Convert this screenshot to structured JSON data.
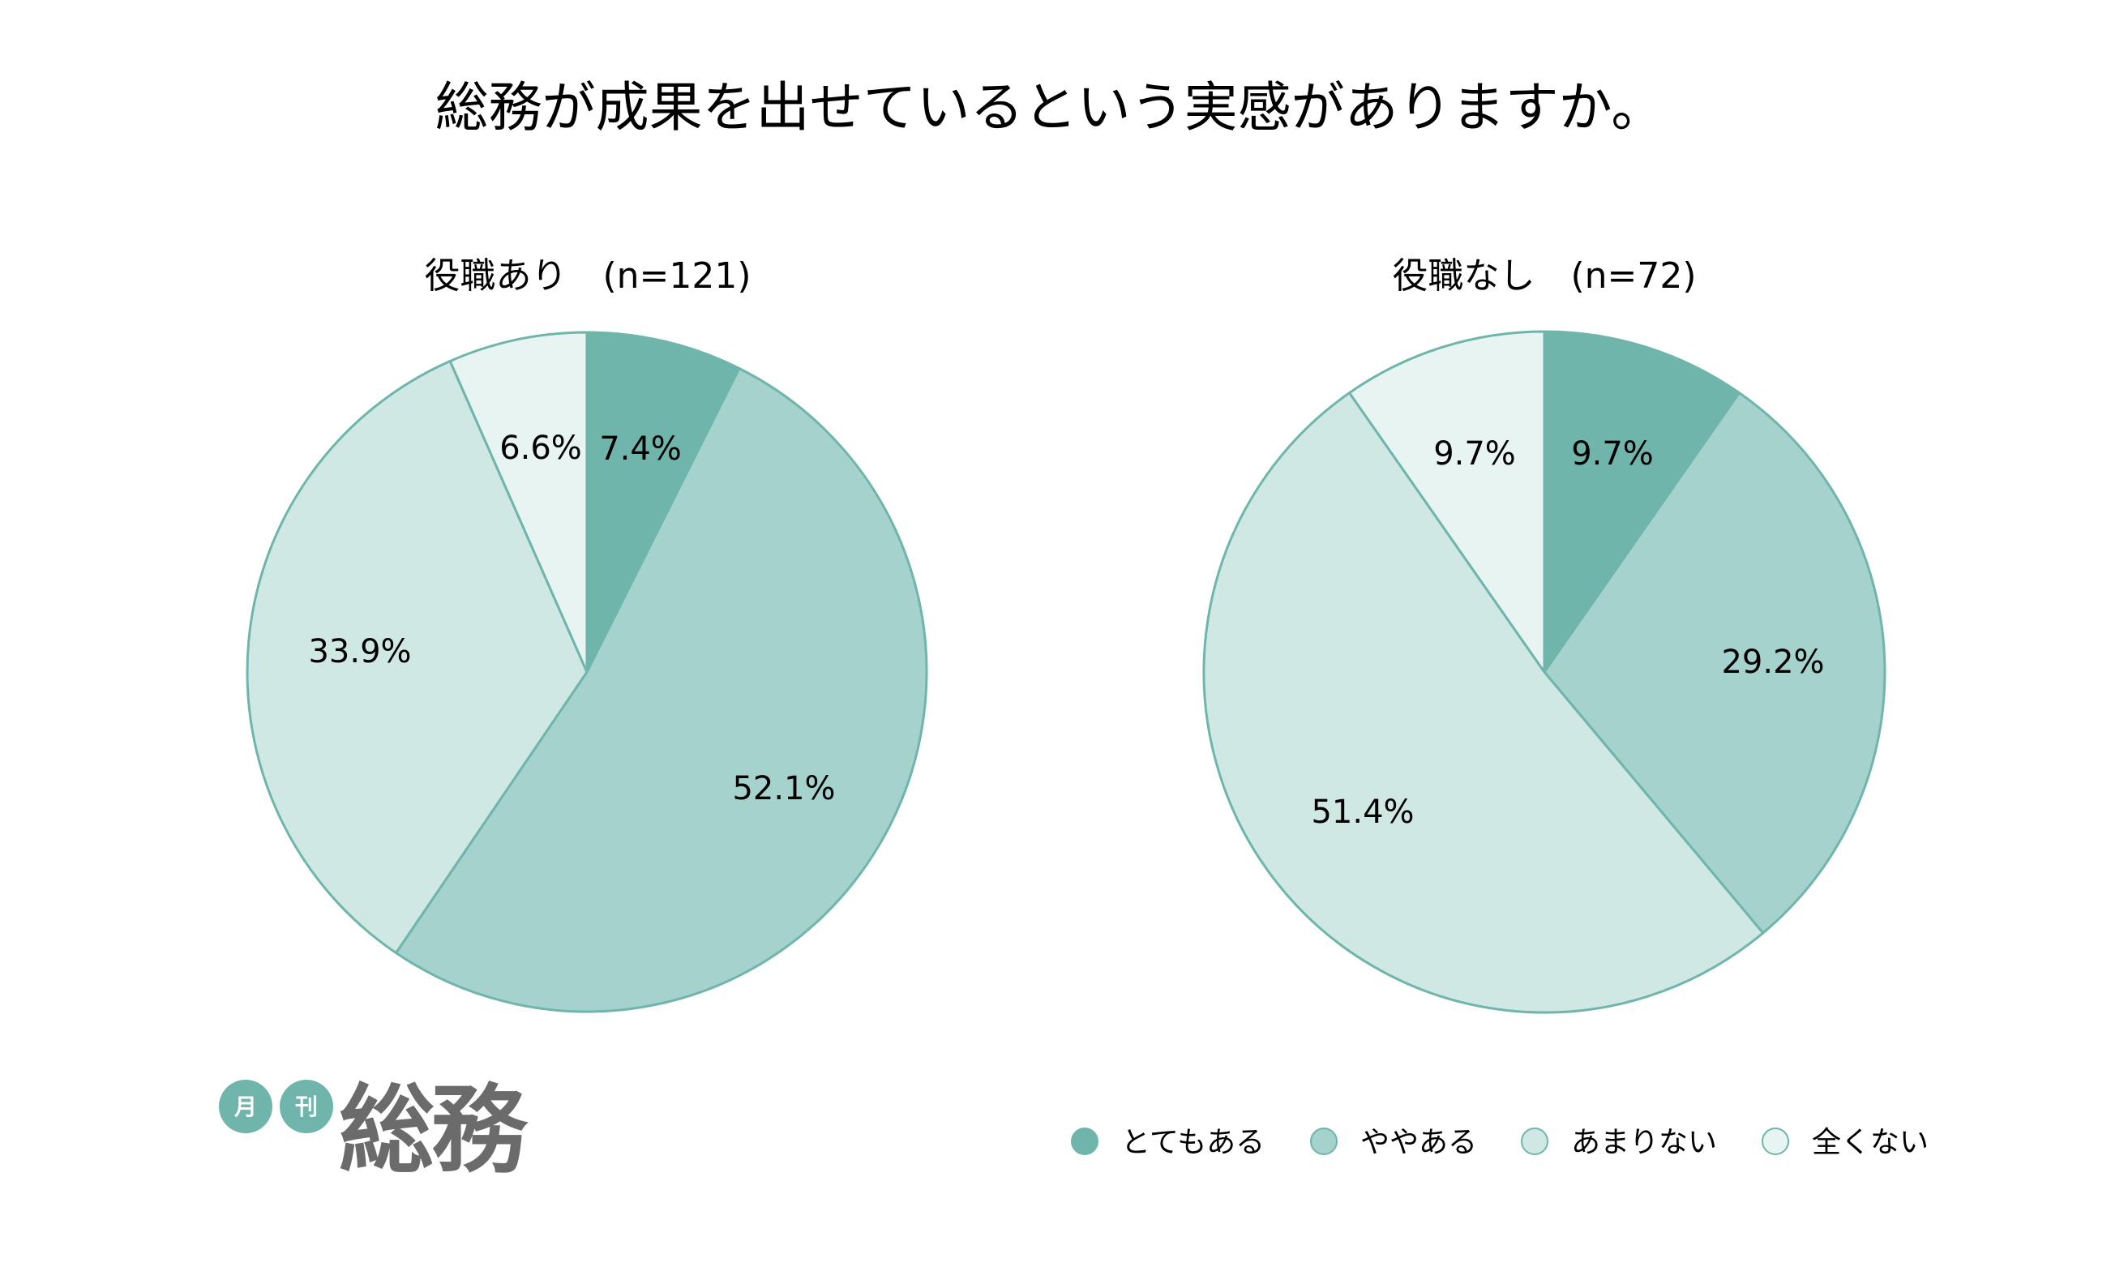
{
  "title": "総務が成果を出せているという実感がありますか。",
  "chart_data": [
    {
      "type": "pie",
      "title": "役職あり　(n=121)",
      "categories": [
        "とてもある",
        "ややある",
        "あまりない",
        "全くない"
      ],
      "values": [
        7.4,
        52.1,
        33.9,
        6.6
      ],
      "labels": [
        "7.4%",
        "52.1%",
        "33.9%",
        "6.6%"
      ]
    },
    {
      "type": "pie",
      "title": "役職なし　(n=72)",
      "categories": [
        "とてもある",
        "ややある",
        "あまりない",
        "全くない"
      ],
      "values": [
        9.7,
        29.2,
        51.4,
        9.7
      ],
      "labels": [
        "9.7%",
        "29.2%",
        "51.4%",
        "9.7%"
      ]
    }
  ],
  "legend": {
    "placement": "bottom-right",
    "items": [
      "とてもある",
      "ややある",
      "あまりない",
      "全くない"
    ]
  },
  "colors": {
    "slices": [
      "#6fb5ab",
      "#a5d2cc",
      "#cfe8e4",
      "#e8f4f2"
    ],
    "stroke": "#6fb5ab",
    "logo_circle": "#6fb5ab",
    "logo_text": "#6b6b6b"
  },
  "logo": {
    "small_1": "月",
    "small_2": "刊",
    "main": "総務"
  }
}
